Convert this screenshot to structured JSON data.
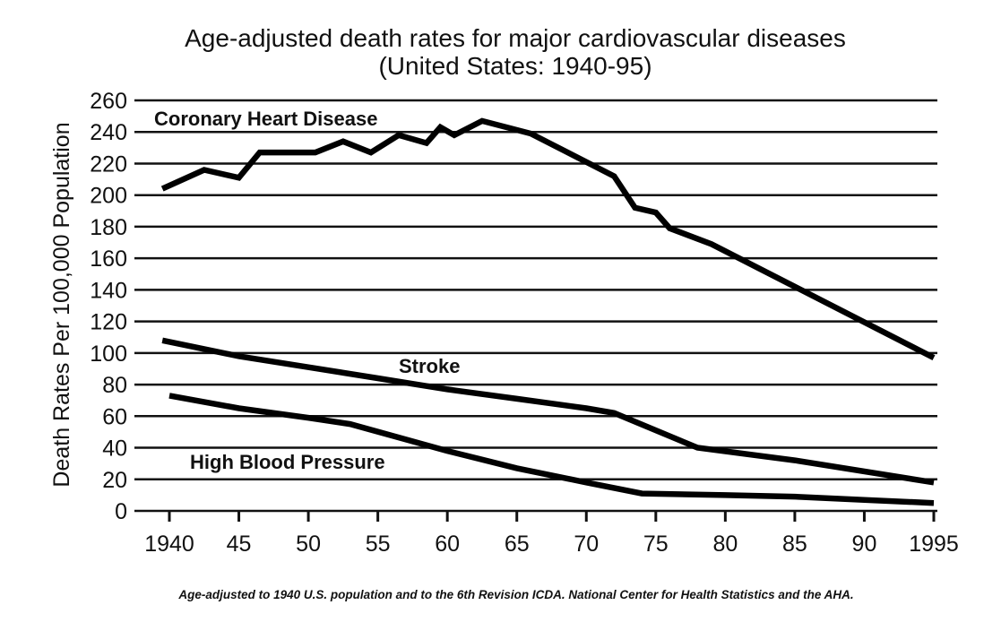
{
  "chart_data": {
    "type": "line",
    "title": "Age-adjusted death rates for major cardiovascular diseases",
    "subtitle": "(United States: 1940-95)",
    "xlabel": "",
    "ylabel": "Death Rates Per 100,000 Population",
    "xlim": [
      1940,
      1995
    ],
    "ylim": [
      0,
      260
    ],
    "grid": true,
    "yticks": [
      0,
      20,
      40,
      60,
      80,
      100,
      120,
      140,
      160,
      180,
      200,
      220,
      240,
      260
    ],
    "ytick_labels": [
      "0",
      "20",
      "40",
      "60",
      "80",
      "100",
      "120",
      "140",
      "160",
      "180",
      "200",
      "220",
      "240",
      "260"
    ],
    "xticks": [
      1940,
      1945,
      1950,
      1955,
      1960,
      1965,
      1970,
      1975,
      1980,
      1985,
      1990,
      1995
    ],
    "xtick_labels": [
      "1940",
      "45",
      "50",
      "55",
      "60",
      "65",
      "70",
      "75",
      "80",
      "85",
      "90",
      "1995"
    ],
    "series": [
      {
        "name": "Coronary Heart Disease",
        "label": "Coronary Heart Disease",
        "x": [
          1939.5,
          1942.5,
          1945,
          1946.5,
          1950.5,
          1952.5,
          1954.5,
          1956.5,
          1958.5,
          1959.5,
          1960.5,
          1962.5,
          1966,
          1972,
          1973.5,
          1975,
          1976,
          1979,
          1995
        ],
        "y": [
          204,
          216,
          211,
          227,
          227,
          234,
          227,
          238,
          233,
          243,
          238,
          247,
          239,
          212,
          192,
          189,
          179,
          169,
          97
        ]
      },
      {
        "name": "Stroke",
        "label": "Stroke",
        "x": [
          1939.5,
          1945,
          1950,
          1955,
          1960,
          1965,
          1970,
          1972,
          1978,
          1985,
          1995
        ],
        "y": [
          108,
          98,
          91,
          84,
          77,
          71,
          65,
          62,
          40,
          32,
          18
        ]
      },
      {
        "name": "High Blood Pressure",
        "label": "High Blood Pressure",
        "x": [
          1940,
          1945,
          1950,
          1953,
          1960,
          1965,
          1970,
          1974,
          1980,
          1985,
          1990,
          1995
        ],
        "y": [
          73,
          65,
          59,
          55,
          38,
          27,
          18,
          11,
          10,
          9,
          7,
          5
        ]
      }
    ],
    "annotations": [
      "Age-adjusted to 1940 U.S. population and to the 6th Revision ICDA. National Center for Health Statistics and the AHA."
    ]
  }
}
